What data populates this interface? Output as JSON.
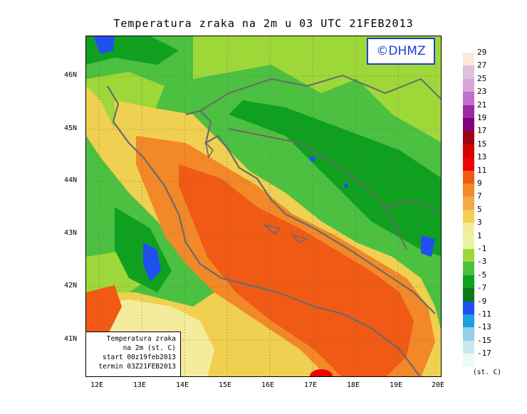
{
  "title": "Temperatura zraka na 2m u 03 UTC 21FEB2013",
  "watermark": "©DHMZ",
  "info_box": {
    "line1": "Temperatura zraka",
    "line2": "na 2m (st. C)",
    "line3": "start 00z19feb2013",
    "line4": "termin 03Z21FEB2013"
  },
  "lat_labels": [
    "46N",
    "45N",
    "44N",
    "43N",
    "42N",
    "41N"
  ],
  "lon_labels": [
    "12E",
    "13E",
    "14E",
    "15E",
    "16E",
    "17E",
    "18E",
    "19E",
    "20E"
  ],
  "legend": {
    "unit": "(st. C)",
    "labels": [
      "29",
      "27",
      "25",
      "23",
      "21",
      "19",
      "17",
      "15",
      "13",
      "11",
      "9",
      "7",
      "5",
      "3",
      "1",
      "-1",
      "-3",
      "-5",
      "-7",
      "-9",
      "-11",
      "-13",
      "-15",
      "-17"
    ],
    "colors": [
      "#fde9d6",
      "#e0c0e0",
      "#d6a4d8",
      "#c070c8",
      "#9c2aa0",
      "#800080",
      "#a00010",
      "#d40000",
      "#f00000",
      "#f05a14",
      "#f28828",
      "#f4a848",
      "#f0d050",
      "#f4ec9c",
      "#e8f5a0",
      "#9ed838",
      "#4cc040",
      "#10a020",
      "#0a7a18",
      "#2050f0",
      "#1ca0e0",
      "#90d0e8",
      "#c8e8f0",
      "#eefaf8"
    ]
  },
  "colors": {
    "sea_warm": "#f05a14",
    "sea_mid": "#f28828",
    "coast_yellow": "#f0d050",
    "land_green": "#4cc040",
    "land_light": "#9ed838",
    "land_dark": "#10a020",
    "cold_blue": "#2050f0",
    "coastline": "#6a6a6a",
    "watermark_blue": "#1d3fd1"
  }
}
